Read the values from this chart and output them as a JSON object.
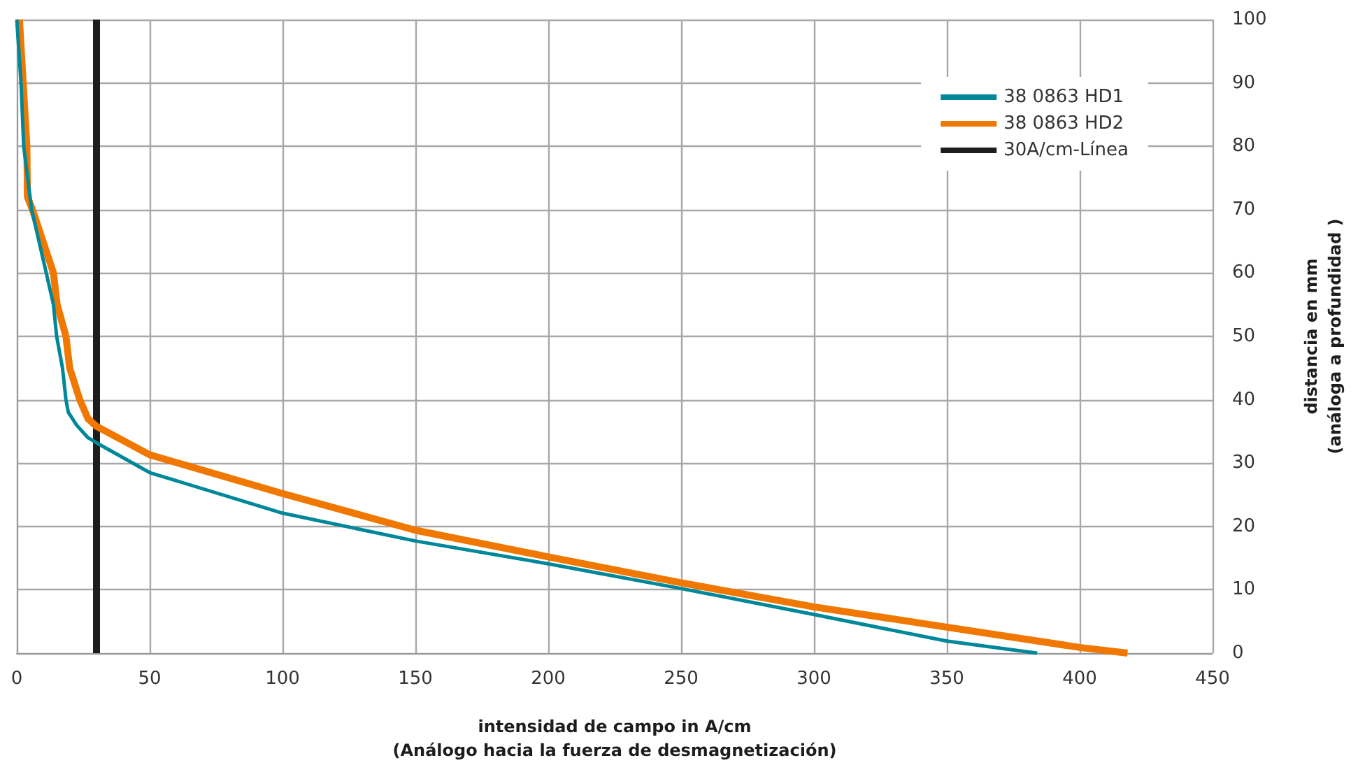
{
  "chart_data": {
    "type": "line",
    "xlabel": "intensidad de campo in A/cm\n(Análogo hacia la fuerza de desmagnetización)",
    "ylabel": "distancia en mm\n(análoga a profundidad )",
    "xlim": [
      0,
      450
    ],
    "xticks": [
      0,
      50,
      100,
      150,
      200,
      250,
      300,
      350,
      400,
      450
    ],
    "ylim": [
      0,
      100
    ],
    "yticks": [
      0,
      10,
      20,
      30,
      40,
      50,
      60,
      70,
      80,
      90,
      100
    ],
    "grid": true,
    "legend": "top right",
    "marker": "none",
    "line_style": "solid",
    "series": [
      {
        "name": "38 0863 HD1",
        "color": "#00889a",
        "x": [
          0,
          1.6,
          2.6,
          5.6,
          11.1,
          13.8,
          15,
          17.2,
          18.5,
          19.4,
          22.5,
          26.8,
          30,
          50,
          100,
          150,
          200,
          250,
          300,
          350,
          384
        ],
        "values": [
          100,
          90,
          80,
          70,
          60,
          55,
          50,
          45,
          40,
          38,
          36,
          34,
          33.2,
          28.5,
          22.1,
          17.7,
          14.1,
          10.2,
          6.1,
          1.9,
          0
        ]
      },
      {
        "name": "38 0863 HD2",
        "color": "#f07800",
        "x": [
          1,
          2.4,
          3.8,
          4,
          5.9,
          13.8,
          14.6,
          15.2,
          18.5,
          19.9,
          23.7,
          26.8,
          30,
          50,
          100,
          150,
          200,
          250,
          300,
          350,
          400,
          418
        ],
        "values": [
          100,
          90,
          80,
          72,
          70,
          60,
          57,
          55,
          50,
          45,
          40,
          37,
          35.8,
          31.3,
          25.2,
          19.4,
          15.2,
          11.1,
          7.3,
          4.1,
          0.9,
          0
        ]
      },
      {
        "name": "30A/cm-Línea",
        "color": "#1d1d1b",
        "x": [
          30,
          30
        ],
        "values": [
          0,
          100
        ]
      }
    ]
  }
}
